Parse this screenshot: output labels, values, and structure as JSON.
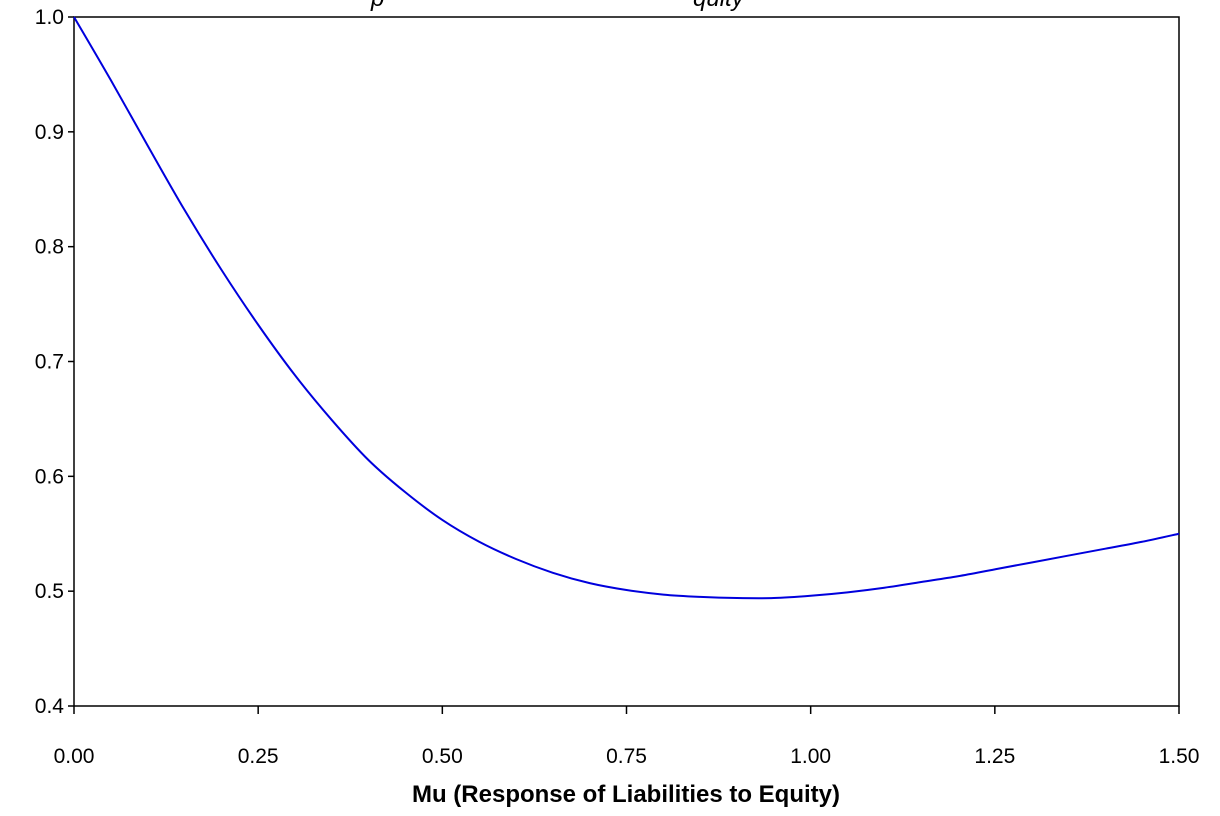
{
  "chart_data": {
    "type": "line",
    "title_partial": "p                                              quity",
    "xlabel": "Mu (Response of Liabilities to Equity)",
    "ylabel": "",
    "xlim": [
      0,
      1.5
    ],
    "ylim": [
      0.4,
      1.0
    ],
    "x_ticks": [
      "0.00",
      "0.25",
      "0.50",
      "0.75",
      "1.00",
      "1.25",
      "1.50"
    ],
    "y_ticks": [
      "0.4",
      "0.5",
      "0.6",
      "0.7",
      "0.8",
      "0.9",
      "1.0"
    ],
    "grid": false,
    "series": [
      {
        "color": "#0000dd",
        "x": [
          0.0,
          0.05,
          0.1,
          0.15,
          0.2,
          0.25,
          0.3,
          0.35,
          0.4,
          0.45,
          0.5,
          0.55,
          0.6,
          0.65,
          0.7,
          0.75,
          0.8,
          0.85,
          0.9,
          0.95,
          1.0,
          1.05,
          1.1,
          1.15,
          1.2,
          1.25,
          1.3,
          1.35,
          1.4,
          1.45,
          1.5
        ],
        "y": [
          1.0,
          0.945,
          0.888,
          0.832,
          0.78,
          0.732,
          0.688,
          0.649,
          0.614,
          0.586,
          0.562,
          0.543,
          0.528,
          0.516,
          0.507,
          0.501,
          0.497,
          0.495,
          0.494,
          0.494,
          0.496,
          0.499,
          0.503,
          0.508,
          0.513,
          0.519,
          0.525,
          0.531,
          0.537,
          0.543,
          0.55
        ]
      }
    ]
  }
}
